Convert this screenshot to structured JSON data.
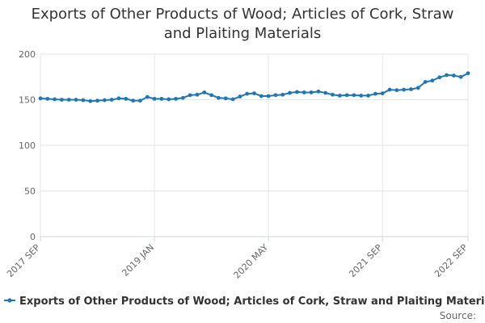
{
  "chart_data": {
    "type": "line",
    "title_lines": [
      "Exports of Other Products of Wood; Articles of Cork, Straw",
      "and Plaiting Materials"
    ],
    "xlabel": "",
    "ylabel": "",
    "ylim": [
      0,
      200
    ],
    "yticks": [
      0,
      50,
      100,
      150,
      200
    ],
    "x_tick_labels": [
      {
        "index": 0,
        "label": "2017 SEP"
      },
      {
        "index": 16,
        "label": "2019 JAN"
      },
      {
        "index": 32,
        "label": "2020 MAY"
      },
      {
        "index": 48,
        "label": "2021 SEP"
      },
      {
        "index": 60,
        "label": "2022 SEP"
      }
    ],
    "grid": true,
    "legend_position": "bottom",
    "source_label": "Source:",
    "color": "#1f77b4",
    "series": [
      {
        "name": "Exports of Other Products of Wood; Articles of Cork, Straw and Plaiting Materials",
        "x": [
          "2017 SEP",
          "2017 OCT",
          "2017 NOV",
          "2017 DEC",
          "2018 JAN",
          "2018 FEB",
          "2018 MAR",
          "2018 APR",
          "2018 MAY",
          "2018 JUN",
          "2018 JUL",
          "2018 AUG",
          "2018 SEP",
          "2018 OCT",
          "2018 NOV",
          "2018 DEC",
          "2019 JAN",
          "2019 FEB",
          "2019 MAR",
          "2019 APR",
          "2019 MAY",
          "2019 JUN",
          "2019 JUL",
          "2019 AUG",
          "2019 SEP",
          "2019 OCT",
          "2019 NOV",
          "2019 DEC",
          "2020 JAN",
          "2020 FEB",
          "2020 MAR",
          "2020 APR",
          "2020 MAY",
          "2020 JUN",
          "2020 JUL",
          "2020 AUG",
          "2020 SEP",
          "2020 OCT",
          "2020 NOV",
          "2020 DEC",
          "2021 JAN",
          "2021 FEB",
          "2021 MAR",
          "2021 APR",
          "2021 MAY",
          "2021 JUN",
          "2021 JUL",
          "2021 AUG",
          "2021 SEP",
          "2021 OCT",
          "2021 NOV",
          "2021 DEC",
          "2022 JAN",
          "2022 FEB",
          "2022 MAR",
          "2022 APR",
          "2022 MAY",
          "2022 JUN",
          "2022 JUL",
          "2022 AUG",
          "2022 SEP"
        ],
        "values": [
          151.5,
          151.0,
          150.5,
          150.0,
          150.0,
          150.0,
          149.5,
          148.5,
          149.0,
          149.5,
          150.0,
          151.5,
          151.0,
          149.0,
          149.0,
          153.0,
          151.0,
          151.0,
          150.5,
          151.0,
          152.0,
          155.0,
          155.5,
          158.0,
          155.0,
          152.0,
          151.5,
          150.5,
          153.5,
          156.5,
          157.0,
          154.0,
          154.0,
          155.0,
          155.5,
          157.5,
          158.5,
          158.0,
          158.0,
          159.0,
          157.5,
          155.5,
          154.5,
          155.0,
          155.0,
          154.5,
          154.5,
          156.5,
          157.0,
          161.0,
          160.5,
          161.0,
          161.5,
          163.0,
          169.5,
          171.0,
          174.5,
          177.0,
          176.5,
          175.0,
          179.0
        ]
      }
    ]
  }
}
